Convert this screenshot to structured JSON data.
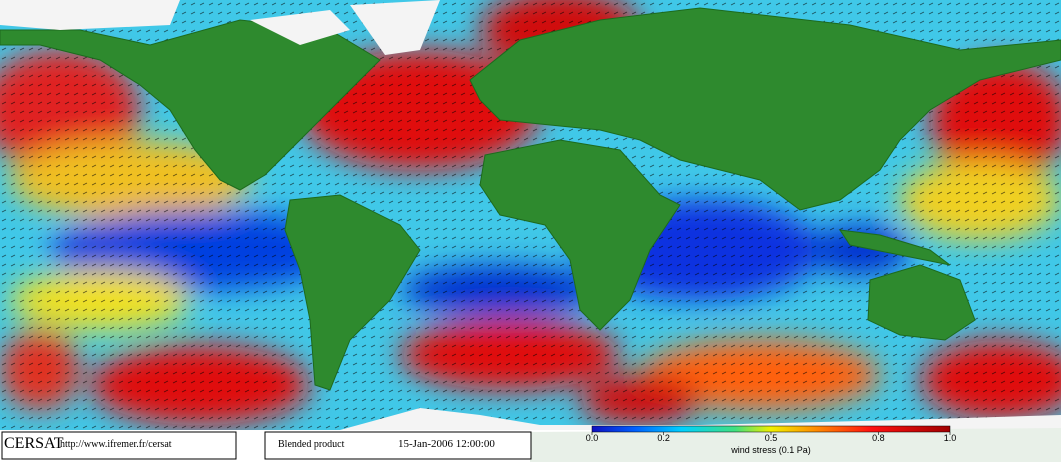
{
  "footer": {
    "logo": "CERSAT",
    "url": "http://www.ifremer.fr/cersat",
    "product": "Blended product",
    "date": "15-Jan-2006 12:00:00"
  },
  "colorbar": {
    "label": "wind stress (0.1 Pa)",
    "lim": [
      0,
      1
    ],
    "ticks": [
      {
        "value": 0,
        "label": "0.0"
      },
      {
        "value": 0.2,
        "label": "0.2"
      },
      {
        "value": 0.5,
        "label": "0.5"
      },
      {
        "value": 0.8,
        "label": "0.8"
      },
      {
        "value": 1,
        "label": "1.0"
      }
    ]
  }
}
